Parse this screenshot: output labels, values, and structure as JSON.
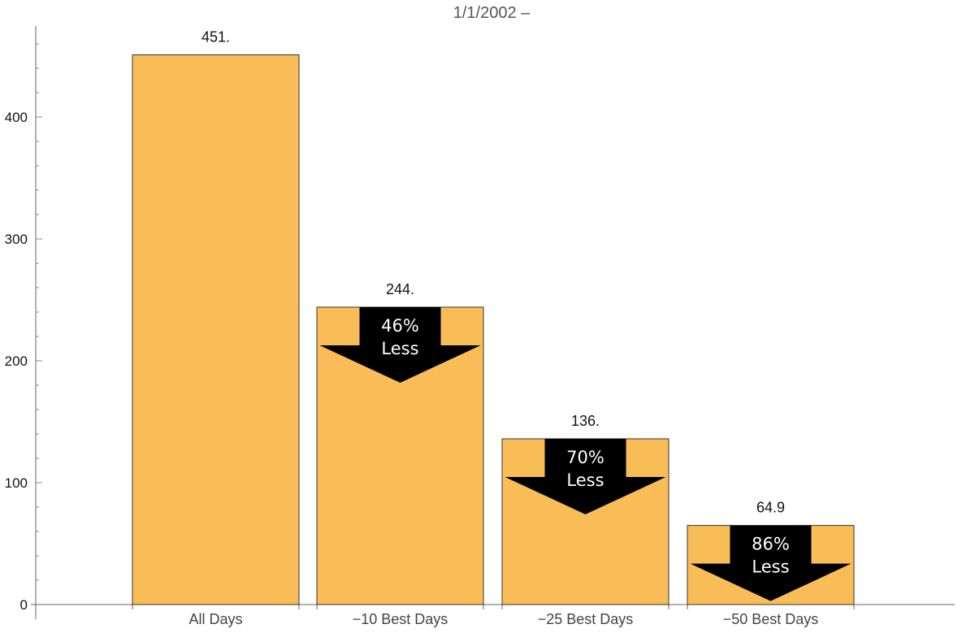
{
  "chart_data": {
    "type": "bar",
    "title": "1/1/2002 –",
    "xlabel": "",
    "ylabel": "",
    "categories": [
      "All Days",
      "−10 Best Days",
      "−25 Best Days",
      "−50 Best Days"
    ],
    "values": [
      451,
      244,
      136,
      64.9
    ],
    "data_labels": [
      "451.",
      "244.",
      "136.",
      "64.9"
    ],
    "yticks": [
      0,
      100,
      200,
      300,
      400
    ],
    "ylim": [
      0,
      470
    ],
    "grid": false,
    "bar_color": "#f9bd57",
    "bar_edge_color": "#333333",
    "annotations": [
      {
        "category_index": 1,
        "percent": "46%",
        "word": "Less"
      },
      {
        "category_index": 2,
        "percent": "70%",
        "word": "Less"
      },
      {
        "category_index": 3,
        "percent": "86%",
        "word": "Less"
      }
    ]
  }
}
